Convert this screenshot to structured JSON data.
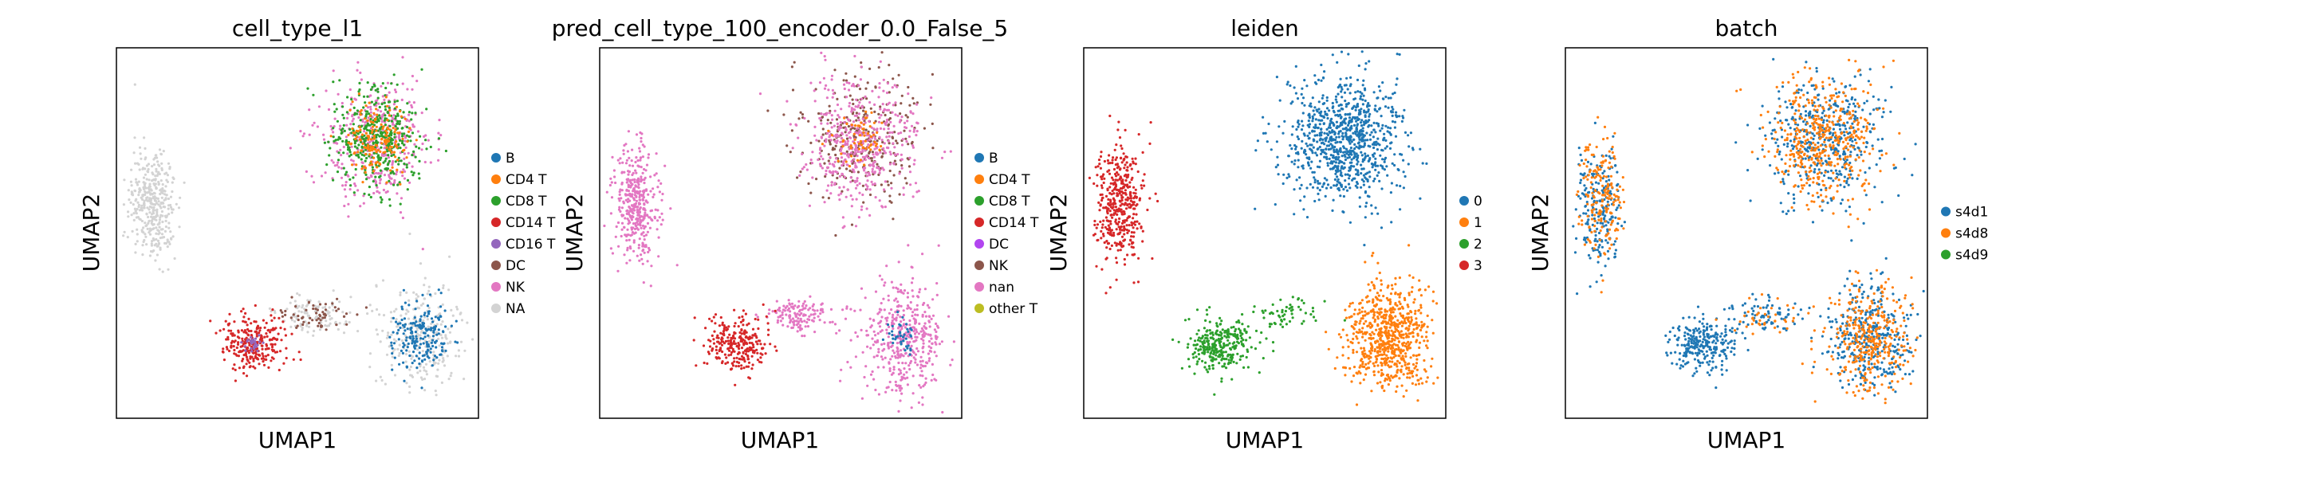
{
  "chart_data": [
    {
      "type": "scatter",
      "title": "cell_type_l1",
      "xlabel": "UMAP1",
      "ylabel": "UMAP2",
      "legend": [
        "B",
        "CD4 T",
        "CD8 T",
        "CD14 T",
        "CD16 T",
        "DC",
        "NK",
        "NA"
      ],
      "colors": [
        "#1f77b4",
        "#ff7f0e",
        "#2ca02c",
        "#d62728",
        "#9467bd",
        "#8c564b",
        "#e377c2",
        "#d3d3d3"
      ]
    },
    {
      "type": "scatter",
      "title": "pred_cell_type_100_encoder_0.0_False_5",
      "xlabel": "UMAP1",
      "ylabel": "UMAP2",
      "legend": [
        "B",
        "CD4 T",
        "CD8 T",
        "CD14 T",
        "DC",
        "NK",
        "nan",
        "other T"
      ],
      "colors": [
        "#1f77b4",
        "#ff7f0e",
        "#2ca02c",
        "#d62728",
        "#b245f0",
        "#8c564b",
        "#e377c2",
        "#bcbd22"
      ]
    },
    {
      "type": "scatter",
      "title": "leiden",
      "xlabel": "UMAP1",
      "ylabel": "UMAP2",
      "legend": [
        "0",
        "1",
        "2",
        "3"
      ],
      "colors": [
        "#1f77b4",
        "#ff7f0e",
        "#2ca02c",
        "#d62728"
      ]
    },
    {
      "type": "scatter",
      "title": "batch",
      "xlabel": "UMAP1",
      "ylabel": "UMAP2",
      "legend": [
        "s4d1",
        "s4d8",
        "s4d9"
      ],
      "colors": [
        "#1f77b4",
        "#ff7f0e",
        "#2ca02c"
      ]
    }
  ]
}
